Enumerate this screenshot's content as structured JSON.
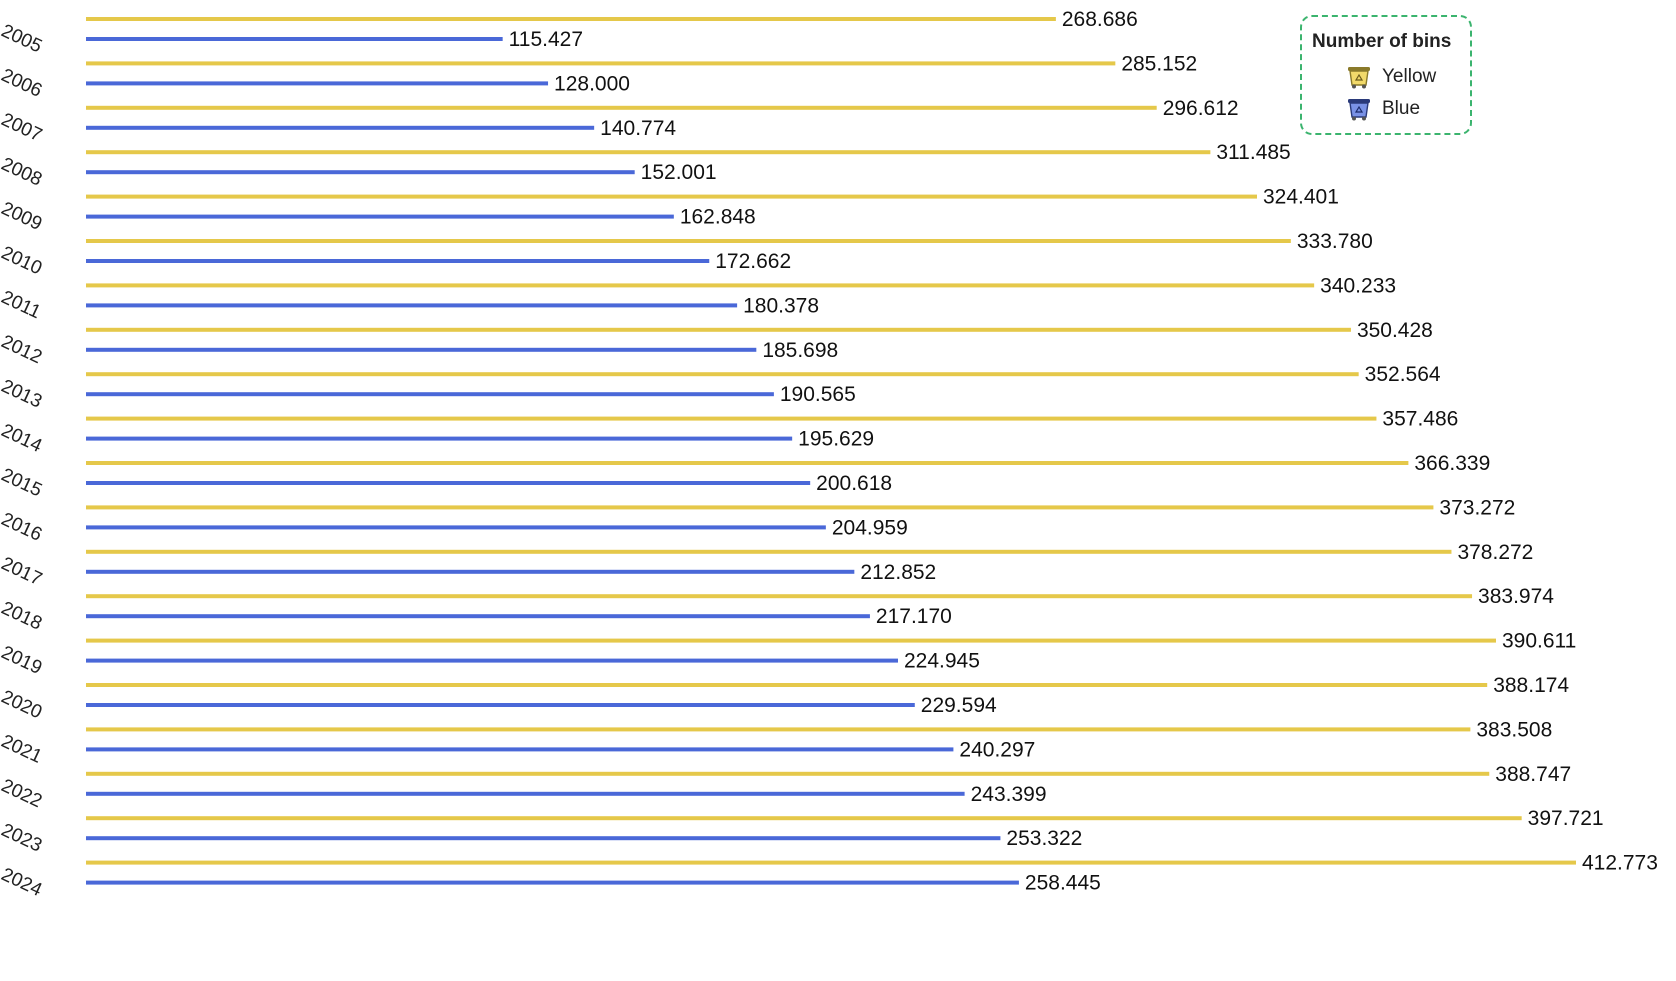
{
  "chart_data": {
    "type": "bar",
    "orientation": "horizontal",
    "categories": [
      "2005",
      "2006",
      "2007",
      "2008",
      "2009",
      "2010",
      "2011",
      "2012",
      "2013",
      "2014",
      "2015",
      "2016",
      "2017",
      "2018",
      "2019",
      "2020",
      "2021",
      "2022",
      "2023",
      "2024"
    ],
    "series": [
      {
        "name": "Yellow",
        "color": "#e5c84a",
        "values": [
          268686,
          285152,
          296612,
          311485,
          324401,
          333780,
          340233,
          350428,
          352564,
          357486,
          366339,
          373272,
          378272,
          383974,
          390611,
          388174,
          383508,
          388747,
          397721,
          412773
        ],
        "labels": [
          "268.686",
          "285.152",
          "296.612",
          "311.485",
          "324.401",
          "333.780",
          "340.233",
          "350.428",
          "352.564",
          "357.486",
          "366.339",
          "373.272",
          "378.272",
          "383.974",
          "390.611",
          "388.174",
          "383.508",
          "388.747",
          "397.721",
          "412.773"
        ]
      },
      {
        "name": "Blue",
        "color": "#4a68d8",
        "values": [
          115427,
          128000,
          140774,
          152001,
          162848,
          172662,
          180378,
          185698,
          190565,
          195629,
          200618,
          204959,
          212852,
          217170,
          224945,
          229594,
          240297,
          243399,
          253322,
          258445
        ],
        "labels": [
          "115.427",
          "128.000",
          "140.774",
          "152.001",
          "162.848",
          "172.662",
          "180.378",
          "185.698",
          "190.565",
          "195.629",
          "200.618",
          "204.959",
          "212.852",
          "217.170",
          "224.945",
          "229.594",
          "240.297",
          "243.399",
          "253.322",
          "258.445"
        ]
      }
    ],
    "legend": {
      "title": "Number of bins",
      "placement": "top-right"
    },
    "grid": false,
    "title": "",
    "xlabel": "",
    "ylabel": ""
  },
  "legend_icons": {
    "yellow": "yellow-recycling-bin-icon",
    "blue": "blue-recycling-bin-icon"
  }
}
